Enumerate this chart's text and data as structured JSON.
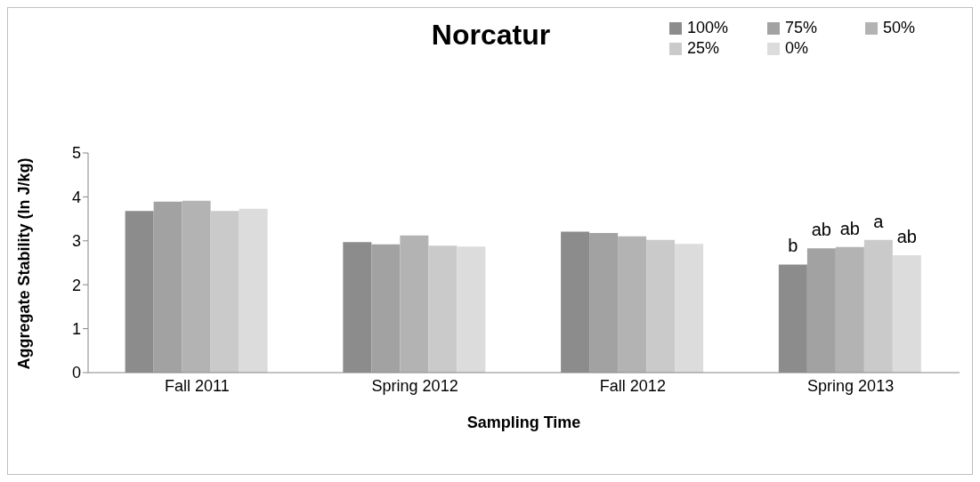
{
  "chart_data": {
    "type": "bar",
    "title": "Norcatur",
    "xlabel": "Sampling Time",
    "ylabel": "Aggregate Stability (ln J/kg)",
    "categories": [
      "Fall 2011",
      "Spring 2012",
      "Fall 2012",
      "Spring 2013"
    ],
    "series": [
      {
        "name": "100%",
        "color": "#8c8c8c",
        "values": [
          3.68,
          2.97,
          3.21,
          2.46
        ],
        "value_labels": [
          null,
          null,
          null,
          "b"
        ]
      },
      {
        "name": "75%",
        "color": "#a2a2a2",
        "values": [
          3.89,
          2.92,
          3.18,
          2.83
        ],
        "value_labels": [
          null,
          null,
          null,
          "ab"
        ]
      },
      {
        "name": "50%",
        "color": "#b3b3b3",
        "values": [
          3.91,
          3.12,
          3.1,
          2.86
        ],
        "value_labels": [
          null,
          null,
          null,
          "ab"
        ]
      },
      {
        "name": "25%",
        "color": "#cacaca",
        "values": [
          3.68,
          2.89,
          3.02,
          3.02
        ],
        "value_labels": [
          null,
          null,
          null,
          "a"
        ]
      },
      {
        "name": "0%",
        "color": "#dcdcdc",
        "values": [
          3.73,
          2.87,
          2.93,
          2.67
        ],
        "value_labels": [
          null,
          null,
          null,
          "ab"
        ]
      }
    ],
    "ylim": [
      0,
      5
    ],
    "yticks": [
      0,
      1,
      2,
      3,
      4,
      5
    ],
    "grid": false,
    "legend": "top right"
  }
}
